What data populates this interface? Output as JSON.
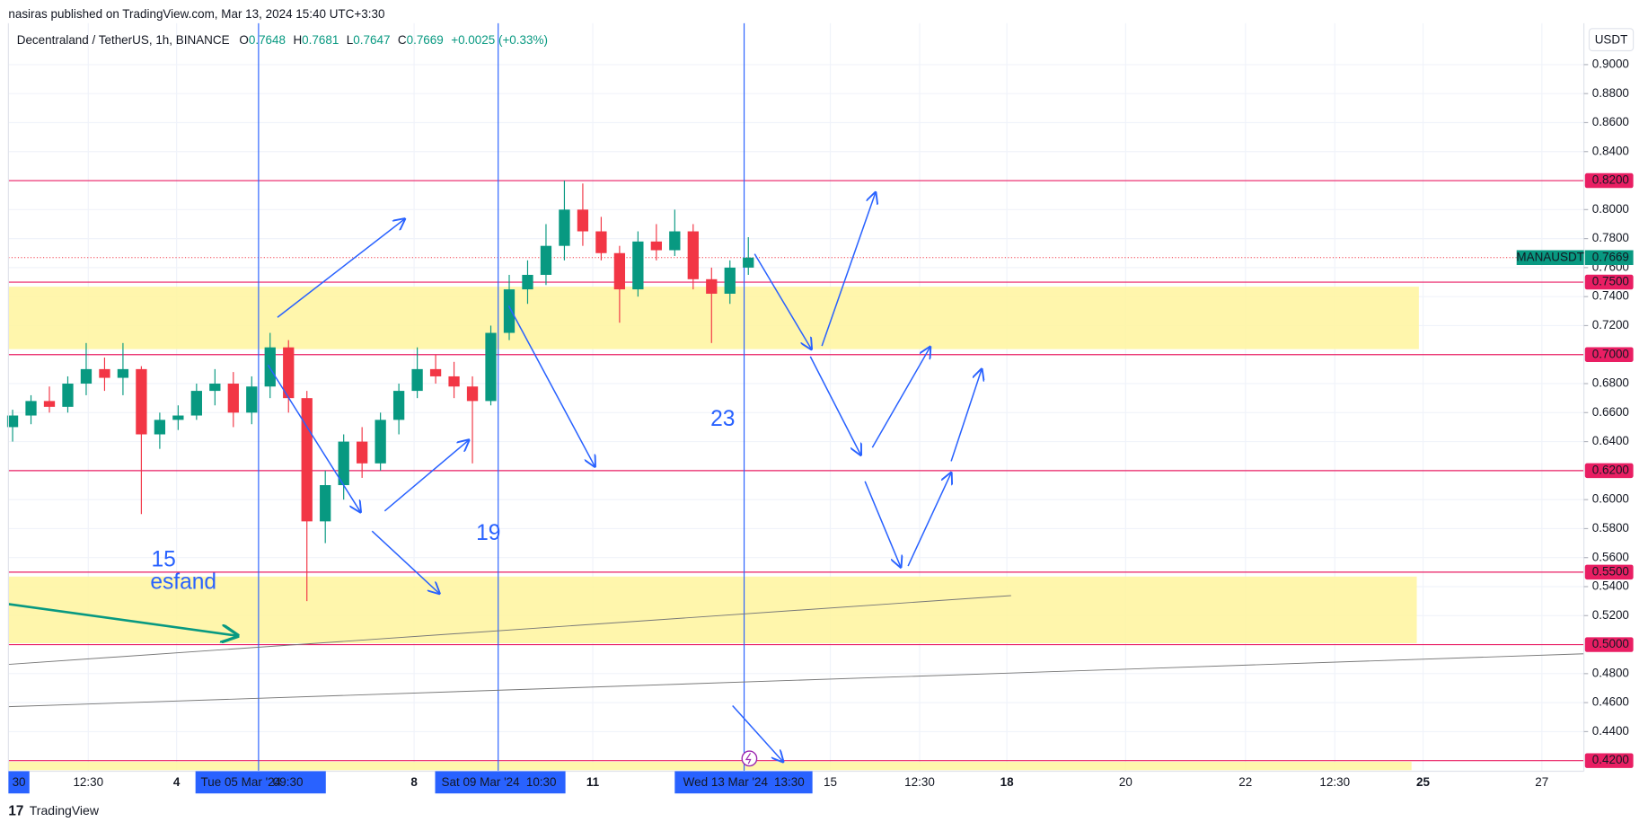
{
  "header": {
    "published": "nasiras published on TradingView.com, Mar 13, 2024 15:40 UTC+3:30",
    "symbol": "Decentraland / TetherUS, 1h, BINANCE",
    "ohlc": [
      {
        "key": "O",
        "value": "0.7648"
      },
      {
        "key": "H",
        "value": "0.7681"
      },
      {
        "key": "L",
        "value": "0.7647"
      },
      {
        "key": "C",
        "value": "0.7669"
      }
    ],
    "change": "+0.0025 (+0.33%)",
    "currency": "USDT"
  },
  "chart_data": {
    "type": "candlestick",
    "up_color": "#089981",
    "down_color": "#f23645",
    "candles": [
      [
        0.65,
        0.662,
        0.64,
        0.658
      ],
      [
        0.658,
        0.672,
        0.652,
        0.668
      ],
      [
        0.668,
        0.678,
        0.66,
        0.664
      ],
      [
        0.664,
        0.685,
        0.66,
        0.68
      ],
      [
        0.68,
        0.708,
        0.672,
        0.69
      ],
      [
        0.69,
        0.698,
        0.675,
        0.684
      ],
      [
        0.684,
        0.708,
        0.672,
        0.69
      ],
      [
        0.69,
        0.692,
        0.59,
        0.645
      ],
      [
        0.645,
        0.66,
        0.635,
        0.655
      ],
      [
        0.655,
        0.665,
        0.648,
        0.658
      ],
      [
        0.658,
        0.68,
        0.655,
        0.675
      ],
      [
        0.675,
        0.69,
        0.665,
        0.68
      ],
      [
        0.68,
        0.688,
        0.65,
        0.66
      ],
      [
        0.66,
        0.685,
        0.652,
        0.678
      ],
      [
        0.678,
        0.715,
        0.67,
        0.705
      ],
      [
        0.705,
        0.71,
        0.66,
        0.67
      ],
      [
        0.67,
        0.675,
        0.53,
        0.585
      ],
      [
        0.585,
        0.62,
        0.57,
        0.61
      ],
      [
        0.61,
        0.645,
        0.6,
        0.64
      ],
      [
        0.64,
        0.65,
        0.615,
        0.625
      ],
      [
        0.625,
        0.66,
        0.62,
        0.655
      ],
      [
        0.655,
        0.68,
        0.645,
        0.675
      ],
      [
        0.675,
        0.705,
        0.67,
        0.69
      ],
      [
        0.69,
        0.7,
        0.68,
        0.685
      ],
      [
        0.685,
        0.695,
        0.67,
        0.678
      ],
      [
        0.678,
        0.685,
        0.625,
        0.668
      ],
      [
        0.668,
        0.72,
        0.665,
        0.715
      ],
      [
        0.715,
        0.755,
        0.71,
        0.745
      ],
      [
        0.745,
        0.765,
        0.735,
        0.755
      ],
      [
        0.755,
        0.79,
        0.748,
        0.775
      ],
      [
        0.775,
        0.82,
        0.765,
        0.8
      ],
      [
        0.8,
        0.818,
        0.775,
        0.785
      ],
      [
        0.785,
        0.795,
        0.765,
        0.77
      ],
      [
        0.77,
        0.775,
        0.722,
        0.745
      ],
      [
        0.745,
        0.785,
        0.74,
        0.778
      ],
      [
        0.778,
        0.79,
        0.765,
        0.772
      ],
      [
        0.772,
        0.8,
        0.768,
        0.785
      ],
      [
        0.785,
        0.79,
        0.745,
        0.752
      ],
      [
        0.752,
        0.76,
        0.708,
        0.742
      ],
      [
        0.742,
        0.765,
        0.735,
        0.76
      ],
      [
        0.76,
        0.781,
        0.755,
        0.7669
      ]
    ],
    "ylim": [
      0.4127,
      0.9285
    ],
    "yticks": [
      {
        "value": 0.9,
        "label": "0.9000"
      },
      {
        "value": 0.88,
        "label": "0.8800"
      },
      {
        "value": 0.86,
        "label": "0.8600"
      },
      {
        "value": 0.84,
        "label": "0.8400"
      },
      {
        "value": 0.8,
        "label": "0.8000"
      },
      {
        "value": 0.78,
        "label": "0.7800"
      },
      {
        "value": 0.76,
        "label": "0.7600"
      },
      {
        "value": 0.74,
        "label": "0.7400"
      },
      {
        "value": 0.72,
        "label": "0.7200"
      },
      {
        "value": 0.68,
        "label": "0.6800"
      },
      {
        "value": 0.66,
        "label": "0.6600"
      },
      {
        "value": 0.64,
        "label": "0.6400"
      },
      {
        "value": 0.6,
        "label": "0.6000"
      },
      {
        "value": 0.58,
        "label": "0.5800"
      },
      {
        "value": 0.56,
        "label": "0.5600"
      },
      {
        "value": 0.54,
        "label": "0.5400"
      },
      {
        "value": 0.52,
        "label": "0.5200"
      },
      {
        "value": 0.48,
        "label": "0.4800"
      },
      {
        "value": 0.46,
        "label": "0.4600"
      },
      {
        "value": 0.44,
        "label": "0.4400"
      }
    ],
    "levels": [
      {
        "value": 0.82,
        "label": "0.8200"
      },
      {
        "value": 0.75,
        "label": "0.7500"
      },
      {
        "value": 0.7,
        "label": "0.7000"
      },
      {
        "value": 0.62,
        "label": "0.6200"
      },
      {
        "value": 0.55,
        "label": "0.5500"
      },
      {
        "value": 0.5,
        "label": "0.5000"
      },
      {
        "value": 0.42,
        "label": "0.4200"
      }
    ],
    "level_color": "#e91e63",
    "last_price": {
      "name": "MANAUSDT",
      "value": 0.7669,
      "label": "0.7669"
    },
    "xlabels": [
      "30",
      "12:30",
      "4",
      "Tue 05 Mar '24",
      "09:30",
      "8",
      "Sat 09 Mar '24",
      "10:30",
      "11",
      "Wed 13 Mar '24",
      "13:30",
      "15",
      "12:30",
      "18",
      "20",
      "22",
      "12:30",
      "25",
      "27"
    ],
    "annotations": [
      "15",
      "esfand",
      "19",
      "23"
    ],
    "grid": true
  },
  "footer": "TradingView"
}
